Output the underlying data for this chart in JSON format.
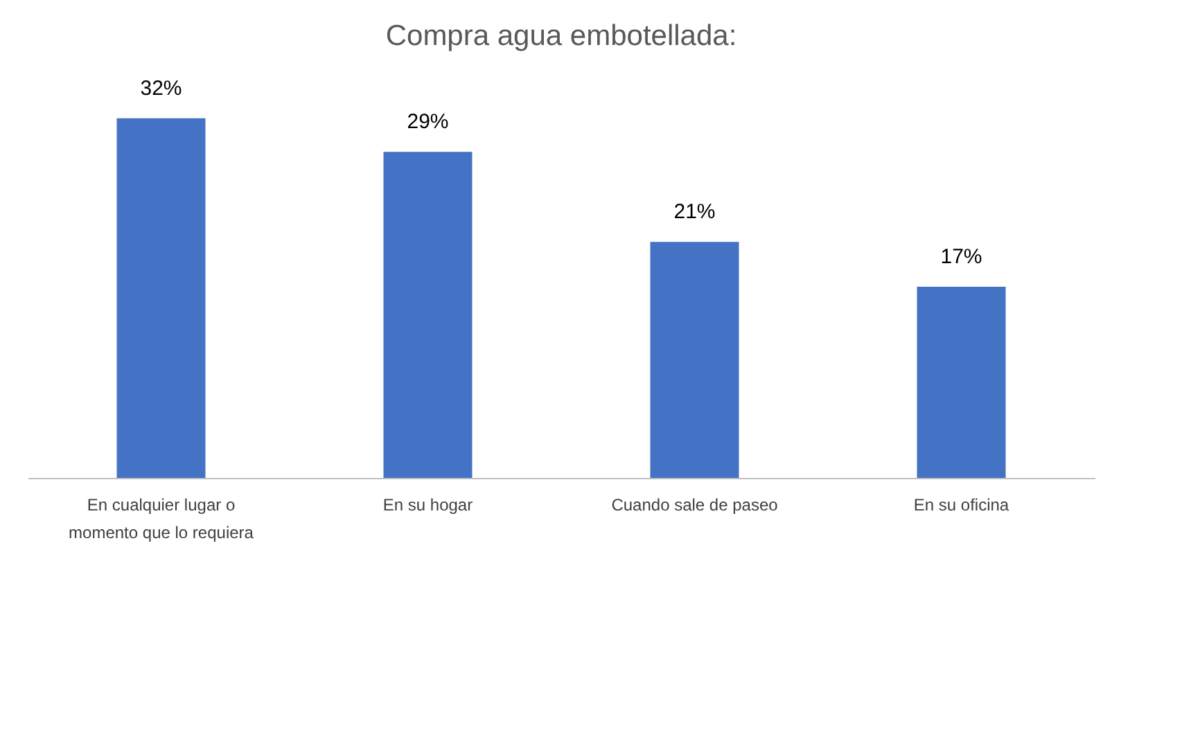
{
  "chart_data": {
    "type": "bar",
    "title": "Compra agua embotellada:",
    "categories": [
      "En cualquier lugar o momento que lo requiera",
      "En su hogar",
      "Cuando sale de paseo",
      "En su oficina"
    ],
    "values": [
      32,
      29,
      21,
      17
    ],
    "value_labels": [
      "32%",
      "29%",
      "21%",
      "17%"
    ],
    "color": "#4472c4",
    "grid": false
  }
}
